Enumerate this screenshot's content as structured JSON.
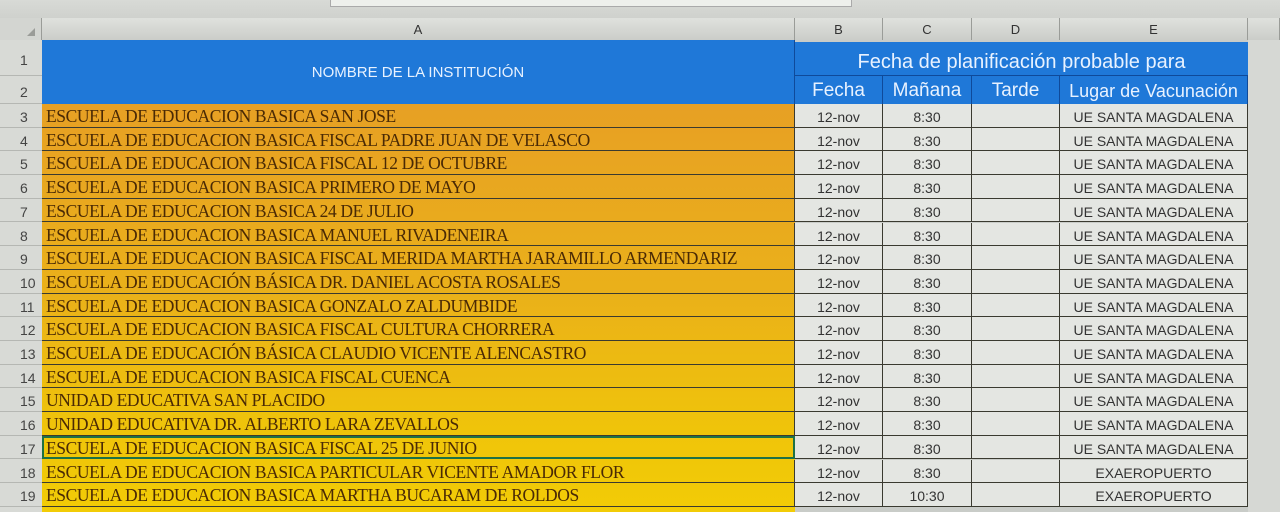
{
  "columns": [
    "A",
    "B",
    "C",
    "D",
    "E"
  ],
  "header": {
    "name": "NOMBRE DE LA INSTITUCIÓN",
    "plan": "Fecha de planificación probable para",
    "fecha": "Fecha",
    "manana": "Mañana",
    "tarde": "Tarde",
    "lugar": "Lugar de Vacunación"
  },
  "colors": {
    "header_blue": "#1f78d8",
    "row_orange": "#e7a024",
    "row_yellow": "#f2cc06"
  },
  "selected_cell": "A17",
  "rows": [
    {
      "n": "1"
    },
    {
      "n": "2"
    },
    {
      "n": "3",
      "name": "ESCUELA DE EDUCACION BASICA SAN JOSE",
      "fecha": "12-nov",
      "manana": "8:30",
      "tarde": "",
      "lugar": "UE SANTA MAGDALENA"
    },
    {
      "n": "4",
      "name": "ESCUELA DE EDUCACION BASICA FISCAL PADRE JUAN DE VELASCO",
      "fecha": "12-nov",
      "manana": "8:30",
      "tarde": "",
      "lugar": "UE SANTA MAGDALENA"
    },
    {
      "n": "5",
      "name": "ESCUELA DE EDUCACION BASICA FISCAL 12 DE OCTUBRE",
      "fecha": "12-nov",
      "manana": "8:30",
      "tarde": "",
      "lugar": "UE SANTA MAGDALENA"
    },
    {
      "n": "6",
      "name": "ESCUELA DE EDUCACION BASICA PRIMERO DE MAYO",
      "fecha": "12-nov",
      "manana": "8:30",
      "tarde": "",
      "lugar": "UE SANTA MAGDALENA"
    },
    {
      "n": "7",
      "name": "ESCUELA DE EDUCACION BASICA 24 DE JULIO",
      "fecha": "12-nov",
      "manana": "8:30",
      "tarde": "",
      "lugar": "UE SANTA MAGDALENA"
    },
    {
      "n": "8",
      "name": "ESCUELA DE EDUCACION BASICA MANUEL RIVADENEIRA",
      "fecha": "12-nov",
      "manana": "8:30",
      "tarde": "",
      "lugar": "UE SANTA MAGDALENA"
    },
    {
      "n": "9",
      "name": "ESCUELA DE EDUCACION BASICA FISCAL MERIDA MARTHA JARAMILLO ARMENDARIZ",
      "fecha": "12-nov",
      "manana": "8:30",
      "tarde": "",
      "lugar": "UE SANTA MAGDALENA"
    },
    {
      "n": "10",
      "name": "ESCUELA DE EDUCACIÓN BÁSICA DR. DANIEL ACOSTA ROSALES",
      "fecha": "12-nov",
      "manana": "8:30",
      "tarde": "",
      "lugar": "UE SANTA MAGDALENA"
    },
    {
      "n": "11",
      "name": "ESCUELA DE EDUCACION BASICA GONZALO ZALDUMBIDE",
      "fecha": "12-nov",
      "manana": "8:30",
      "tarde": "",
      "lugar": "UE SANTA MAGDALENA"
    },
    {
      "n": "12",
      "name": "ESCUELA DE EDUCACION BASICA FISCAL CULTURA CHORRERA",
      "fecha": "12-nov",
      "manana": "8:30",
      "tarde": "",
      "lugar": "UE SANTA MAGDALENA"
    },
    {
      "n": "13",
      "name": "ESCUELA DE EDUCACIÓN BÁSICA CLAUDIO VICENTE ALENCASTRO",
      "fecha": "12-nov",
      "manana": "8:30",
      "tarde": "",
      "lugar": "UE SANTA MAGDALENA"
    },
    {
      "n": "14",
      "name": "ESCUELA DE EDUCACION BASICA FISCAL CUENCA",
      "fecha": "12-nov",
      "manana": "8:30",
      "tarde": "",
      "lugar": "UE SANTA MAGDALENA"
    },
    {
      "n": "15",
      "name": "UNIDAD EDUCATIVA SAN PLACIDO",
      "fecha": "12-nov",
      "manana": "8:30",
      "tarde": "",
      "lugar": "UE SANTA MAGDALENA"
    },
    {
      "n": "16",
      "name": "UNIDAD EDUCATIVA DR. ALBERTO LARA ZEVALLOS",
      "fecha": "12-nov",
      "manana": "8:30",
      "tarde": "",
      "lugar": "UE SANTA MAGDALENA"
    },
    {
      "n": "17",
      "name": "ESCUELA DE EDUCACION BASICA FISCAL 25 DE JUNIO",
      "fecha": "12-nov",
      "manana": "8:30",
      "tarde": "",
      "lugar": "UE SANTA MAGDALENA"
    },
    {
      "n": "18",
      "name": "ESCUELA DE EDUCACION BASICA PARTICULAR VICENTE AMADOR FLOR",
      "fecha": "12-nov",
      "manana": "8:30",
      "tarde": "",
      "lugar": "EXAEROPUERTO"
    },
    {
      "n": "19",
      "name": "ESCUELA DE EDUCACION BASICA MARTHA BUCARAM DE ROLDOS",
      "fecha": "12-nov",
      "manana": "10:30",
      "tarde": "",
      "lugar": "EXAEROPUERTO"
    }
  ]
}
